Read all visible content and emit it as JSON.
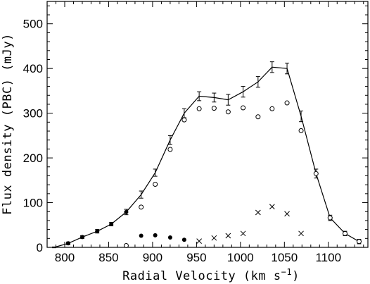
{
  "chart_data": {
    "type": "line",
    "xlabel": "Radial Velocity (km s",
    "xlabel_superscript": "−1",
    "xlabel_close": ")",
    "ylabel": "Flux density (PBC) (mJy)",
    "xlim": [
      780,
      1145
    ],
    "ylim": [
      0,
      550
    ],
    "xticks": [
      800,
      850,
      900,
      950,
      1000,
      1050,
      1100
    ],
    "xtick_labels": [
      "800",
      "850",
      "900",
      "950",
      "1000",
      "1050",
      "1100"
    ],
    "yticks": [
      0,
      100,
      200,
      300,
      400,
      500
    ],
    "ytick_labels": [
      "0",
      "100",
      "200",
      "300",
      "400",
      "500"
    ],
    "grid": false,
    "legend": "none",
    "series": [
      {
        "marker": "line-errorbar",
        "x": [
          788,
          804,
          820,
          837,
          853,
          870,
          887,
          903,
          920,
          936,
          953,
          970,
          986,
          1003,
          1020,
          1036,
          1053,
          1069,
          1086,
          1102,
          1119,
          1135
        ],
        "y": [
          0,
          9,
          23,
          36,
          52,
          79,
          118,
          167,
          240,
          300,
          338,
          335,
          330,
          348,
          370,
          403,
          400,
          293,
          165,
          66,
          31,
          13
        ],
        "err": [
          1,
          3,
          3,
          4,
          4,
          6,
          8,
          8,
          10,
          10,
          10,
          10,
          12,
          12,
          12,
          12,
          12,
          12,
          10,
          6,
          5,
          5
        ]
      },
      {
        "marker": "open-circle",
        "x": [
          870,
          887,
          903,
          920,
          936,
          953,
          970,
          986,
          1003,
          1020,
          1036,
          1053,
          1069,
          1086,
          1102,
          1119,
          1135
        ],
        "y": [
          4,
          90,
          141,
          219,
          285,
          310,
          311,
          303,
          312,
          292,
          310,
          323,
          261,
          165,
          66,
          31,
          13
        ]
      },
      {
        "marker": "filled-circle",
        "x": [
          804,
          820,
          837,
          853,
          870,
          887,
          903,
          920,
          936
        ],
        "y": [
          9,
          23,
          36,
          52,
          79,
          26,
          27,
          22,
          17
        ]
      },
      {
        "marker": "cross",
        "x": [
          953,
          970,
          986,
          1003,
          1020,
          1036,
          1053,
          1069
        ],
        "y": [
          14,
          21,
          26,
          31,
          78,
          91,
          75,
          31
        ]
      }
    ]
  }
}
